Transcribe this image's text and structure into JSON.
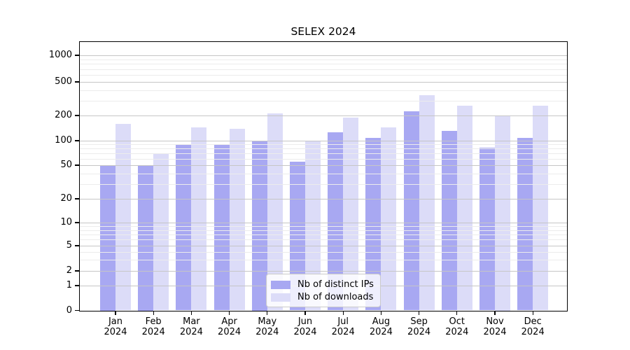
{
  "chart_data": {
    "type": "bar",
    "title": "SELEX 2024",
    "categories": [
      "Jan",
      "Feb",
      "Mar",
      "Apr",
      "May",
      "Jun",
      "Jul",
      "Aug",
      "Sep",
      "Oct",
      "Nov",
      "Dec"
    ],
    "year": "2024",
    "series": [
      {
        "name": "Nb of distinct IPs",
        "color": "#a8a8f2",
        "values": [
          50,
          50,
          90,
          90,
          100,
          55,
          125,
          108,
          225,
          130,
          82,
          108
        ]
      },
      {
        "name": "Nb of downloads",
        "color": "#dcdcf8",
        "values": [
          160,
          68,
          145,
          140,
          210,
          98,
          190,
          145,
          350,
          260,
          200,
          260
        ]
      }
    ],
    "xlabel": "",
    "ylabel": "",
    "yscale": "symlog",
    "yticks": [
      0,
      1,
      2,
      5,
      10,
      20,
      50,
      100,
      200,
      500,
      1000
    ],
    "ylim": [
      0,
      1450
    ],
    "grid": true,
    "legend_position": "lower center"
  }
}
